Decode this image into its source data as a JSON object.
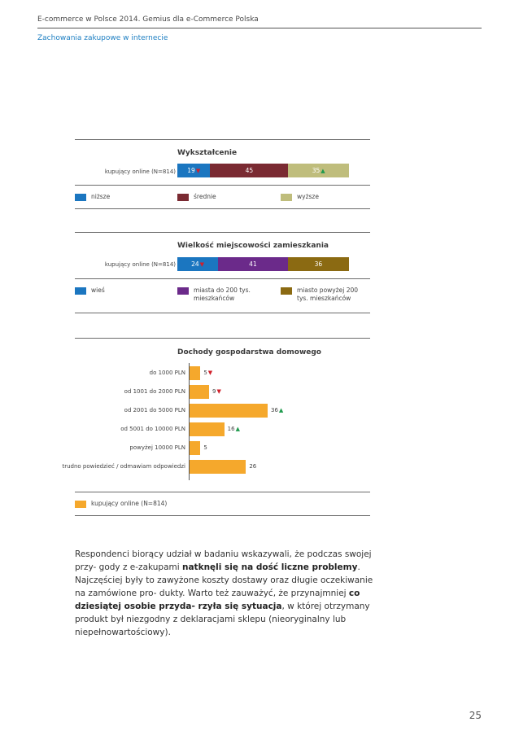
{
  "header": {
    "title": "E-commerce w Polsce 2014. Gemius dla e-Commerce Polska",
    "subtitle": "Zachowania zakupowe w internecie"
  },
  "chart_data": [
    {
      "type": "bar",
      "stacked": true,
      "orientation": "horizontal",
      "title": "Wykształcenie",
      "categories": [
        "kupujący online (N=814)"
      ],
      "series": [
        {
          "name": "niższe",
          "values": [
            19
          ],
          "color": "#1b76c0",
          "marker": "down"
        },
        {
          "name": "średnie",
          "values": [
            45
          ],
          "color": "#7a2a32",
          "marker": ""
        },
        {
          "name": "wyższe",
          "values": [
            35
          ],
          "color": "#bfbd7c",
          "marker": "up"
        }
      ]
    },
    {
      "type": "bar",
      "stacked": true,
      "orientation": "horizontal",
      "title": "Wielkość miejscowości zamieszkania",
      "categories": [
        "kupujący online (N=814)"
      ],
      "series": [
        {
          "name": "wieś",
          "values": [
            24
          ],
          "color": "#1b76c0",
          "marker": "down"
        },
        {
          "name": "miasta do 200 tys. mieszkańców",
          "values": [
            41
          ],
          "color": "#6b2a8a",
          "marker": ""
        },
        {
          "name": "miasto powyżej 200 tys. mieszkańców",
          "values": [
            36
          ],
          "color": "#8b6a12",
          "marker": ""
        }
      ]
    },
    {
      "type": "bar",
      "orientation": "horizontal",
      "title": "Dochody gospodarstwa domowego",
      "categories": [
        "do 1000 PLN",
        "od 1001 do 2000 PLN",
        "od 2001 do 5000 PLN",
        "od 5001 do 10000 PLN",
        "powyżej 10000 PLN",
        "trudno powiedzieć / odmawiam odpowiedzi"
      ],
      "series": [
        {
          "name": "kupujący online (N=814)",
          "values": [
            5,
            9,
            36,
            16,
            5,
            26
          ],
          "markers": [
            "down",
            "down",
            "up",
            "up",
            "",
            ""
          ],
          "color": "#f5a82c"
        }
      ],
      "xlim": [
        0,
        50
      ]
    }
  ],
  "paragraph": {
    "t1": "Respondenci biorący udział w badaniu wskazywali, że podczas swojej przy- gody z e-zakupami ",
    "b1": "natknęli się na dość liczne problemy",
    "t2": ". Najczęściej były to zawyżone koszty dostawy oraz długie oczekiwanie na zamówione pro- dukty. Warto też zauważyć, że przynajmniej ",
    "b2": "co dziesiątej osobie przyda- rzyła się sytuacja",
    "t3": ", w której otrzymany produkt był niezgodny z deklaracjami sklepu (nieoryginalny lub niepełnowartościowy)."
  },
  "page_number": "25"
}
